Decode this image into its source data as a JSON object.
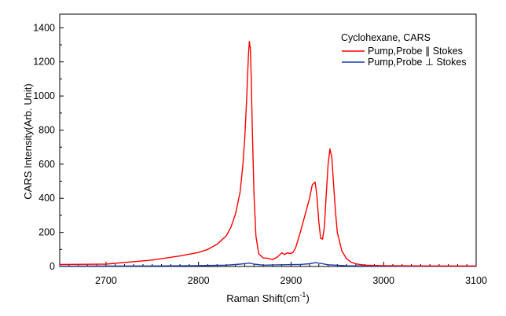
{
  "chart_data": {
    "type": "line",
    "xlabel": "Raman Shift(cm",
    "xlabel_sup": "-1",
    "xlabel_suffix": ")",
    "ylabel": "CARS Intensity(Arb. Unit)",
    "xlim": [
      2650,
      3100
    ],
    "ylim": [
      0,
      1480
    ],
    "x_ticks": [
      2700,
      2800,
      2900,
      3000,
      3100
    ],
    "y_ticks": [
      0,
      200,
      400,
      600,
      800,
      1000,
      1200,
      1400
    ],
    "grid": false,
    "legend_position": "top-right",
    "legend_title": "Cyclohexane, CARS",
    "series": [
      {
        "name": "Pump,Probe ∥ Stokes",
        "legend_label": "Pump,Probe",
        "legend_symbol": "∥",
        "legend_suffix": "Stokes",
        "color": "#ff0000",
        "x": [
          2650,
          2700,
          2750,
          2780,
          2800,
          2810,
          2820,
          2830,
          2835,
          2840,
          2845,
          2848,
          2850,
          2852,
          2853,
          2854,
          2855,
          2856,
          2857,
          2858,
          2860,
          2862,
          2865,
          2870,
          2875,
          2880,
          2885,
          2890,
          2893,
          2896,
          2899,
          2902,
          2905,
          2910,
          2915,
          2920,
          2923,
          2926,
          2928,
          2930,
          2932,
          2934,
          2936,
          2938,
          2940,
          2942,
          2944,
          2946,
          2948,
          2950,
          2955,
          2960,
          2965,
          2970,
          2980,
          3000,
          3050,
          3100
        ],
        "y": [
          12,
          14,
          38,
          62,
          82,
          100,
          130,
          180,
          230,
          310,
          440,
          600,
          760,
          980,
          1120,
          1250,
          1320,
          1280,
          1100,
          830,
          420,
          180,
          75,
          50,
          48,
          40,
          55,
          80,
          70,
          80,
          75,
          82,
          110,
          200,
          300,
          400,
          480,
          495,
          410,
          260,
          165,
          160,
          230,
          420,
          600,
          690,
          640,
          480,
          320,
          200,
          90,
          45,
          25,
          15,
          8,
          5,
          3,
          3
        ]
      },
      {
        "name": "Pump,Probe ⊥ Stokes",
        "legend_label": "Pump,Probe",
        "legend_symbol": "⊥",
        "legend_suffix": "Stokes",
        "color": "#1f3fa8",
        "x": [
          2650,
          2750,
          2800,
          2830,
          2845,
          2852,
          2855,
          2860,
          2870,
          2890,
          2910,
          2920,
          2926,
          2932,
          2940,
          2960,
          3000,
          3100
        ],
        "y": [
          2,
          3,
          5,
          8,
          14,
          18,
          20,
          14,
          8,
          10,
          12,
          16,
          22,
          18,
          10,
          4,
          2,
          1
        ]
      }
    ]
  }
}
